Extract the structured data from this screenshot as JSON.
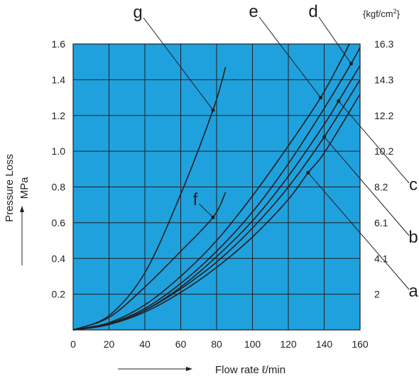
{
  "chart_data": {
    "type": "line",
    "title": "",
    "xlabel": "Flow rate ℓ/min",
    "ylabel": [
      "Pressure Loss",
      "MPa"
    ],
    "y2label": "{kgf/cm²}",
    "xlim": [
      0,
      160
    ],
    "ylim": [
      0,
      1.6
    ],
    "grid": true,
    "plot_background": "#1fa1dd",
    "line_color": "#231f20",
    "x_ticks": [
      "0",
      "20",
      "40",
      "60",
      "80",
      "100",
      "120",
      "140",
      "160"
    ],
    "y_ticks": [
      "0.2",
      "0.4",
      "0.6",
      "0.8",
      "1.0",
      "1.2",
      "1.4",
      "1.6"
    ],
    "y2_ticks": [
      "2",
      "4.1",
      "6.1",
      "8.2",
      "10.2",
      "12.2",
      "14.3",
      "16.3"
    ],
    "series": [
      {
        "name": "a",
        "x": [
          0,
          20,
          40,
          60,
          80,
          100,
          120,
          131,
          140,
          160
        ],
        "y": [
          0,
          0.03,
          0.1,
          0.21,
          0.35,
          0.52,
          0.73,
          0.88,
          0.99,
          1.32
        ]
      },
      {
        "name": "b",
        "x": [
          0,
          20,
          40,
          60,
          80,
          100,
          120,
          140,
          160
        ],
        "y": [
          0,
          0.03,
          0.11,
          0.23,
          0.38,
          0.57,
          0.8,
          1.08,
          1.4
        ]
      },
      {
        "name": "c",
        "x": [
          0,
          20,
          40,
          60,
          80,
          100,
          120,
          140,
          148,
          160
        ],
        "y": [
          0,
          0.03,
          0.11,
          0.24,
          0.41,
          0.61,
          0.86,
          1.15,
          1.28,
          1.48
        ]
      },
      {
        "name": "d",
        "x": [
          0,
          20,
          40,
          60,
          80,
          100,
          120,
          140,
          155,
          160
        ],
        "y": [
          0,
          0.035,
          0.12,
          0.26,
          0.44,
          0.66,
          0.93,
          1.24,
          1.49,
          1.58
        ]
      },
      {
        "name": "e",
        "x": [
          0,
          20,
          40,
          60,
          80,
          100,
          120,
          138,
          150,
          154
        ],
        "y": [
          0,
          0.04,
          0.14,
          0.3,
          0.5,
          0.75,
          1.03,
          1.3,
          1.52,
          1.6
        ]
      },
      {
        "name": "f",
        "x": [
          0,
          20,
          40,
          60,
          78,
          85
        ],
        "y": [
          0,
          0.07,
          0.24,
          0.44,
          0.63,
          0.77
        ]
      },
      {
        "name": "g",
        "x": [
          0,
          20,
          40,
          60,
          78,
          85
        ],
        "y": [
          0,
          0.08,
          0.32,
          0.76,
          1.23,
          1.47
        ]
      }
    ],
    "annotations": [
      {
        "label": "a",
        "point": [
          131,
          0.88
        ]
      },
      {
        "label": "b",
        "point": [
          140,
          1.08
        ]
      },
      {
        "label": "c",
        "point": [
          148,
          1.28
        ]
      },
      {
        "label": "d",
        "point": [
          155,
          1.49
        ]
      },
      {
        "label": "e",
        "point": [
          138,
          1.3
        ]
      },
      {
        "label": "f",
        "point": [
          78,
          0.63
        ]
      },
      {
        "label": "g",
        "point": [
          78,
          1.23
        ]
      }
    ]
  }
}
